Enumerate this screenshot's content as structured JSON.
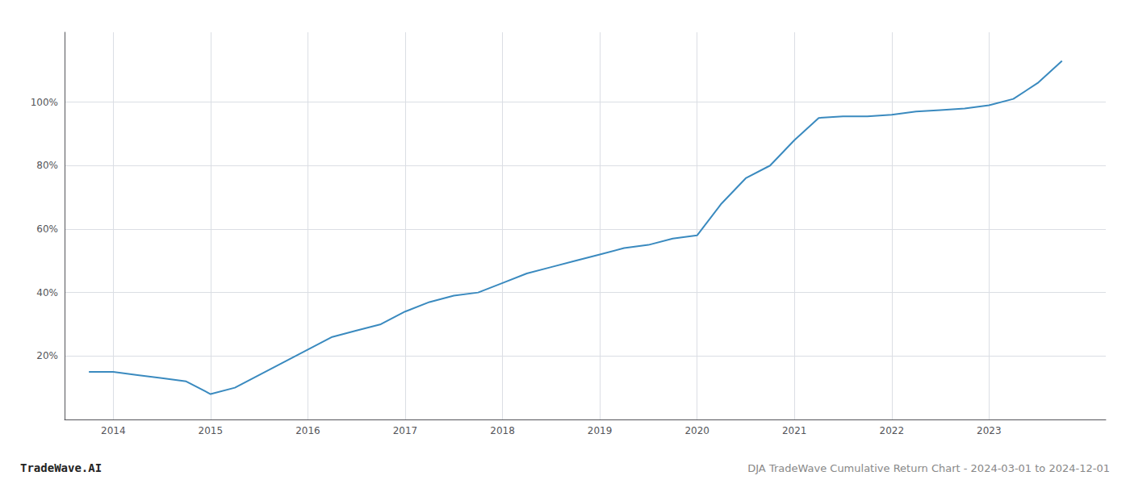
{
  "chart_data": {
    "type": "line",
    "title": "DJA TradeWave Cumulative Return Chart - 2024-03-01 to 2024-12-01",
    "annotations": [
      "TradeWave.AI"
    ],
    "x": [
      2013.75,
      2014.0,
      2014.25,
      2014.5,
      2014.75,
      2015.0,
      2015.25,
      2015.5,
      2015.75,
      2016.0,
      2016.25,
      2016.5,
      2016.75,
      2017.0,
      2017.25,
      2017.5,
      2017.75,
      2018.0,
      2018.25,
      2018.5,
      2018.75,
      2019.0,
      2019.25,
      2019.5,
      2019.75,
      2020.0,
      2020.25,
      2020.5,
      2020.75,
      2021.0,
      2021.25,
      2021.5,
      2021.75,
      2022.0,
      2022.25,
      2022.5,
      2022.75,
      2023.0,
      2023.25,
      2023.5,
      2023.75
    ],
    "values": [
      0.15,
      0.15,
      0.14,
      0.13,
      0.12,
      0.08,
      0.1,
      0.14,
      0.18,
      0.22,
      0.26,
      0.28,
      0.3,
      0.34,
      0.37,
      0.39,
      0.4,
      0.43,
      0.46,
      0.48,
      0.5,
      0.52,
      0.54,
      0.55,
      0.57,
      0.58,
      0.68,
      0.76,
      0.8,
      0.88,
      0.95,
      0.955,
      0.955,
      0.96,
      0.97,
      0.975,
      0.98,
      0.99,
      1.01,
      1.06,
      1.13
    ],
    "color": "#3a8abf",
    "xlim": [
      2013.5,
      2024.2
    ],
    "xticks": [
      2014,
      2015,
      2016,
      2017,
      2018,
      2019,
      2020,
      2021,
      2022,
      2023
    ],
    "ylim": [
      0.0,
      1.22
    ],
    "yticks": [
      {
        "value": 0.2,
        "label": "20%"
      },
      {
        "value": 0.4,
        "label": "40%"
      },
      {
        "value": 0.6,
        "label": "60%"
      },
      {
        "value": 0.8,
        "label": "80%"
      },
      {
        "value": 1.0,
        "label": "100%"
      }
    ],
    "grid": true
  }
}
